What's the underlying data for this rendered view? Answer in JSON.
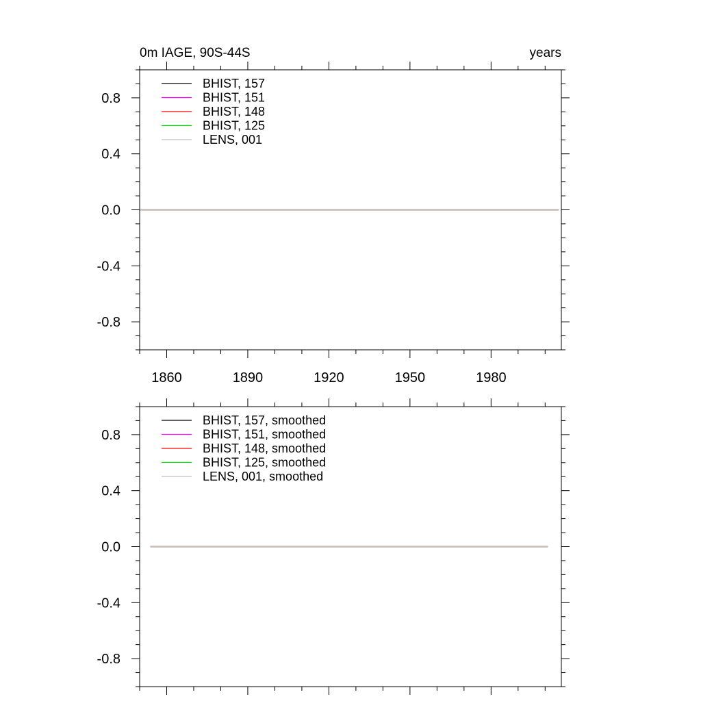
{
  "figure": {
    "title_left": "0m IAGE, 90S-44S",
    "title_right": "years"
  },
  "chart_data": [
    {
      "type": "line",
      "x_tick_labels": [
        "1860",
        "1890",
        "1920",
        "1950",
        "1980"
      ],
      "x_ticks": [
        1860,
        1890,
        1920,
        1950,
        1980
      ],
      "xlim": [
        1850,
        2006
      ],
      "ylim": [
        -1.0,
        1.0
      ],
      "y_ticks": [
        -0.8,
        -0.4,
        0.0,
        0.4,
        0.8
      ],
      "y_tick_labels": [
        "-0.8",
        "-0.4",
        "0.0",
        "0.4",
        "0.8"
      ],
      "legend_placement": "top-left",
      "grid": false,
      "series": [
        {
          "name": "BHIST, 157",
          "color": "#000000",
          "x": [
            1850,
            1885,
            1920,
            1950,
            1980,
            2005
          ],
          "values": [
            0,
            0,
            0,
            0,
            0,
            0
          ]
        },
        {
          "name": "BHIST, 151",
          "color": "#ff00ff",
          "x": [
            1850,
            1885,
            1920,
            1950,
            1980,
            2005
          ],
          "values": [
            0,
            0,
            0,
            0,
            0,
            0
          ]
        },
        {
          "name": "BHIST, 148",
          "color": "#ff0000",
          "x": [
            1850,
            1885,
            1920,
            1950,
            1980,
            2005
          ],
          "values": [
            0,
            0,
            0,
            0,
            0,
            0
          ]
        },
        {
          "name": "BHIST, 125",
          "color": "#00dd00",
          "x": [
            1850,
            1885,
            1920,
            1950,
            1980,
            2005
          ],
          "values": [
            0,
            0,
            0,
            0,
            0,
            0
          ]
        },
        {
          "name": "LENS, 001",
          "color": "#c0c0c0",
          "x": [
            1850,
            1885,
            1920,
            1950,
            1980,
            2005
          ],
          "values": [
            0,
            0,
            0,
            0,
            0,
            0
          ]
        }
      ]
    },
    {
      "type": "line",
      "x_tick_labels": [],
      "x_ticks": [
        1860,
        1890,
        1920,
        1950,
        1980
      ],
      "xlim": [
        1850,
        2006
      ],
      "ylim": [
        -1.0,
        1.0
      ],
      "y_ticks": [
        -0.8,
        -0.4,
        0.0,
        0.4,
        0.8
      ],
      "y_tick_labels": [
        "-0.8",
        "-0.4",
        "0.0",
        "0.4",
        "0.8"
      ],
      "legend_placement": "top-left",
      "grid": false,
      "series": [
        {
          "name": "BHIST, 157, smoothed",
          "color": "#000000",
          "x": [
            1854,
            1885,
            1920,
            1950,
            1980,
            2001
          ],
          "values": [
            0,
            0,
            0,
            0,
            0,
            0
          ]
        },
        {
          "name": "BHIST, 151, smoothed",
          "color": "#ff00ff",
          "x": [
            1854,
            1885,
            1920,
            1950,
            1980,
            2001
          ],
          "values": [
            0,
            0,
            0,
            0,
            0,
            0
          ]
        },
        {
          "name": "BHIST, 148, smoothed",
          "color": "#ff0000",
          "x": [
            1854,
            1885,
            1920,
            1950,
            1980,
            2001
          ],
          "values": [
            0,
            0,
            0,
            0,
            0,
            0
          ]
        },
        {
          "name": "BHIST, 125, smoothed",
          "color": "#00dd00",
          "x": [
            1854,
            1885,
            1920,
            1950,
            1980,
            2001
          ],
          "values": [
            0,
            0,
            0,
            0,
            0,
            0
          ]
        },
        {
          "name": "LENS, 001, smoothed",
          "color": "#c0c0c0",
          "x": [
            1854,
            1885,
            1920,
            1950,
            1980,
            2001
          ],
          "values": [
            0,
            0,
            0,
            0,
            0,
            0
          ]
        }
      ]
    }
  ]
}
